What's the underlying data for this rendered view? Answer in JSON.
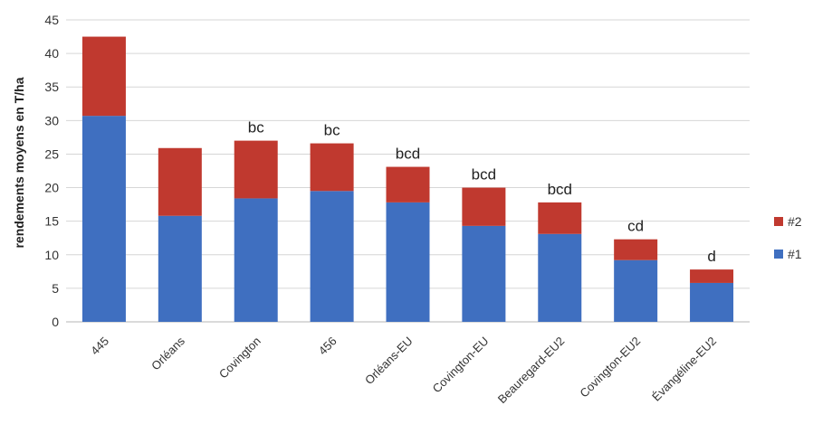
{
  "chart_data": {
    "type": "bar",
    "stacked": true,
    "title": "",
    "xlabel": "",
    "ylabel": "rendements moyens en T/ha",
    "ylim": [
      0,
      45
    ],
    "yticks": [
      0,
      5,
      10,
      15,
      20,
      25,
      30,
      35,
      40,
      45
    ],
    "grid": true,
    "legend_position": "right",
    "categories": [
      "445",
      "Orléans",
      "Covington",
      "456",
      "Orléans-EU",
      "Covington-EU",
      "Beauregard-EU2",
      "Covington-EU2",
      "Évangéline-EU2"
    ],
    "series": [
      {
        "name": "#1",
        "color": "#3F6FC0",
        "values": [
          30.7,
          15.8,
          18.4,
          19.5,
          17.8,
          14.3,
          13.1,
          9.2,
          5.8
        ]
      },
      {
        "name": "#2",
        "color": "#C0392F",
        "values": [
          11.8,
          10.1,
          8.6,
          7.1,
          5.3,
          5.7,
          4.7,
          3.1,
          2.0
        ]
      }
    ],
    "annotations": [
      "",
      "",
      "bc",
      "bc",
      "bcd",
      "bcd",
      "bcd",
      "cd",
      "d"
    ]
  }
}
